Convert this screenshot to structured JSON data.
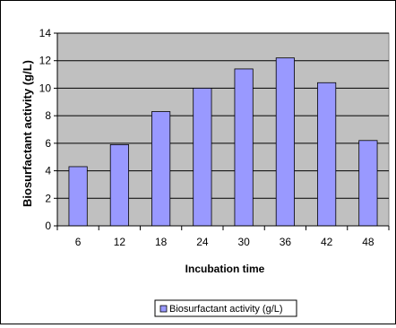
{
  "chart_data": {
    "type": "bar",
    "title": "",
    "categories": [
      "6",
      "12",
      "18",
      "24",
      "30",
      "36",
      "42",
      "48"
    ],
    "series": [
      {
        "name": "Biosurfactant activity (g/L)",
        "values": [
          4.3,
          5.9,
          8.3,
          10.0,
          11.4,
          12.2,
          10.4,
          6.2
        ]
      }
    ],
    "xlabel": "Incubation time",
    "ylabel": "Biosurfactant activity (g/L)",
    "ylim": [
      0,
      14
    ],
    "yticks": [
      "0",
      "2",
      "4",
      "6",
      "8",
      "10",
      "12",
      "14"
    ],
    "grid": true,
    "legend_position": "bottom",
    "colors": {
      "plot_background": "#c0c0c0",
      "bar_fill": "#9999ff",
      "bar_stroke": "#000000",
      "gridline": "#000000"
    }
  }
}
